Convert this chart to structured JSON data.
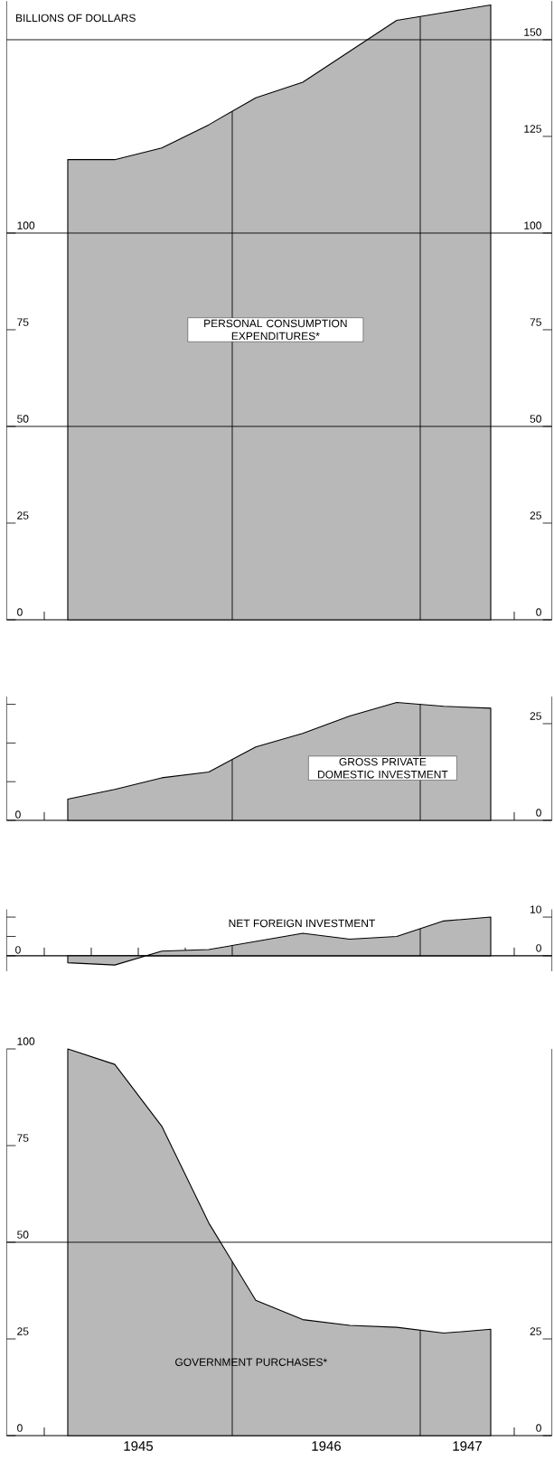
{
  "chart_data": [
    {
      "type": "area",
      "ylabel": "BILLIONS OF DOLLARS",
      "x": [
        1945.125,
        1945.375,
        1945.625,
        1945.875,
        1946.125,
        1946.375,
        1946.625,
        1946.875,
        1947.125,
        1947.375
      ],
      "series": [
        {
          "name": "PERSONAL CONSUMPTION EXPENDITURES*",
          "color": "#b8b8b8",
          "values": [
            119,
            119,
            122,
            128,
            135,
            139,
            147,
            155,
            157,
            159
          ]
        }
      ],
      "xlim": [
        1944.8,
        1947.7
      ],
      "xticks": [
        {
          "value": 1945.0,
          "label": null
        },
        {
          "value": 1945.25,
          "label": null
        },
        {
          "value": 1945.5,
          "label": null
        },
        {
          "value": 1945.75,
          "label": null
        },
        {
          "value": 1946.25,
          "label": null
        },
        {
          "value": 1946.5,
          "label": null
        },
        {
          "value": 1946.75,
          "label": null
        },
        {
          "value": 1947.25,
          "label": null
        },
        {
          "value": 1947.5,
          "label": null
        }
      ],
      "ylim": [
        0,
        160
      ],
      "yticks": [
        0,
        25,
        50,
        75,
        100
      ],
      "y2lim": [
        0,
        160
      ],
      "y2ticks": [
        0,
        25,
        50,
        75,
        100,
        125,
        150
      ],
      "ref_lines": [
        {
          "axis": "y",
          "value": 50
        },
        {
          "axis": "y",
          "value": 100
        },
        {
          "axis": "y",
          "value": 150
        },
        {
          "axis": "x",
          "value": 1946
        },
        {
          "axis": "x",
          "value": 1947
        }
      ],
      "tick_labels": "y"
    },
    {
      "type": "area",
      "x": [
        1945.125,
        1945.375,
        1945.625,
        1945.875,
        1946.125,
        1946.375,
        1946.625,
        1946.875,
        1947.125,
        1947.375
      ],
      "series": [
        {
          "name": "GROSS PRIVATE DOMESTIC INVESTMENT",
          "color": "#b8b8b8",
          "axis": "y2",
          "values": [
            5.5,
            8,
            11,
            12.5,
            19,
            22.5,
            27,
            30.5,
            29.5,
            29
          ]
        }
      ],
      "xlim": [
        1944.8,
        1947.7
      ],
      "xticks": [
        {
          "value": 1945.0,
          "label": null
        },
        {
          "value": 1945.25,
          "label": null
        },
        {
          "value": 1945.5,
          "label": null
        },
        {
          "value": 1945.75,
          "label": null
        },
        {
          "value": 1946.25,
          "label": null
        },
        {
          "value": 1946.5,
          "label": null
        },
        {
          "value": 1946.75,
          "label": null
        },
        {
          "value": 1947.25,
          "label": null
        },
        {
          "value": 1947.5,
          "label": null
        }
      ],
      "annotations": [
        "0"
      ],
      "y2lim": [
        0,
        32
      ],
      "y2ticks": [
        0,
        25
      ],
      "ref_lines": [
        {
          "axis": "x",
          "value": 1946
        },
        {
          "axis": "x",
          "value": 1947
        }
      ],
      "tick_labels": "y"
    },
    {
      "type": "area",
      "x": [
        1945.125,
        1945.375,
        1945.625,
        1945.875,
        1946.125,
        1946.375,
        1946.625,
        1946.875,
        1947.125,
        1947.375
      ],
      "series": [
        {
          "name": "NET FOREIGN INVESTMENT",
          "color": "#b8b8b8",
          "axis": "y2",
          "values": [
            -1.8,
            -2.4,
            1.2,
            1.6,
            3.7,
            5.8,
            4.3,
            5.0,
            9.0,
            10.0
          ]
        }
      ],
      "xlim": [
        1944.8,
        1947.7
      ],
      "xticks": [
        {
          "value": 1945.0,
          "label": null
        },
        {
          "value": 1945.25,
          "label": null
        },
        {
          "value": 1945.5,
          "label": null
        },
        {
          "value": 1945.75,
          "label": null
        },
        {
          "value": 1946.25,
          "label": null
        },
        {
          "value": 1946.5,
          "label": null
        },
        {
          "value": 1946.75,
          "label": null
        },
        {
          "value": 1947.25,
          "label": null
        },
        {
          "value": 1947.5,
          "label": null
        }
      ],
      "annotations": [
        "0"
      ],
      "y2lim": [
        -4,
        12
      ],
      "y2ticks": [
        0,
        10
      ],
      "ref_lines": [
        {
          "axis": "x",
          "value": 1946
        },
        {
          "axis": "x",
          "value": 1947
        }
      ],
      "tick_labels": "y"
    },
    {
      "type": "area",
      "x": [
        1945.125,
        1945.375,
        1945.625,
        1945.875,
        1946.125,
        1946.375,
        1946.625,
        1946.875,
        1947.125,
        1947.375
      ],
      "series": [
        {
          "name": "GOVERNMENT PURCHASES*",
          "color": "#b8b8b8",
          "values": [
            100,
            96,
            80,
            55,
            35,
            30,
            28.5,
            28,
            26.5,
            27.5
          ]
        }
      ],
      "xlim": [
        1944.8,
        1947.7
      ],
      "xticks": [
        {
          "value": 1945.0,
          "label": null
        },
        {
          "value": 1945.25,
          "label": null
        },
        {
          "value": 1945.5,
          "label": "1945"
        },
        {
          "value": 1945.75,
          "label": null
        },
        {
          "value": 1946.25,
          "label": null
        },
        {
          "value": 1946.5,
          "label": "1946"
        },
        {
          "value": 1946.75,
          "label": null
        },
        {
          "value": 1947.25,
          "label": "1947"
        },
        {
          "value": 1947.5,
          "label": null
        }
      ],
      "ylim": [
        0,
        100
      ],
      "yticks": [
        0,
        25,
        50,
        75,
        100
      ],
      "y2lim": [
        0,
        100
      ],
      "y2ticks": [
        0,
        25
      ],
      "ref_lines": [
        {
          "axis": "y",
          "value": 50
        },
        {
          "axis": "x",
          "value": 1946
        },
        {
          "axis": "x",
          "value": 1947
        }
      ]
    }
  ]
}
